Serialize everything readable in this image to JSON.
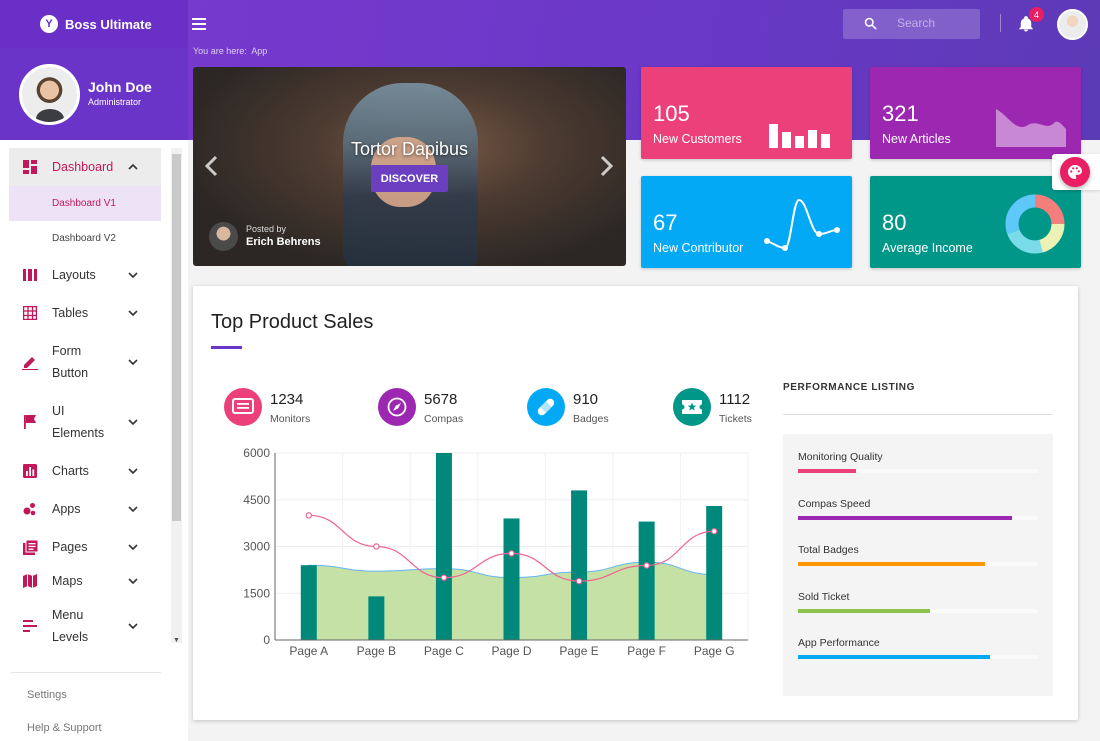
{
  "app": {
    "brand": "Boss Ultimate",
    "breadcrumb_label": "You are here:",
    "breadcrumb_page": "App"
  },
  "search": {
    "placeholder": "Search"
  },
  "notifications": {
    "count": "4"
  },
  "profile": {
    "name": "John Doe",
    "role": "Administrator"
  },
  "nav": {
    "dashboard": "Dashboard",
    "dashboard_v1": "Dashboard V1",
    "dashboard_v2": "Dashboard V2",
    "layouts": "Layouts",
    "tables": "Tables",
    "form_line1": "Form",
    "form_line2": "Button",
    "ui_line1": "UI",
    "ui_line2": "Elements",
    "charts": "Charts",
    "apps": "Apps",
    "pages": "Pages",
    "maps": "Maps",
    "menu_line1": "Menu",
    "menu_line2": "Levels",
    "settings": "Settings",
    "help": "Help & Support"
  },
  "hero": {
    "title": "Tortor Dapibus",
    "button": "DISCOVER",
    "posted_label": "Posted by",
    "author": "Erich Behrens"
  },
  "cards": {
    "customers": {
      "value": "105",
      "label": "New Customers",
      "color": "#ec407a"
    },
    "articles": {
      "value": "321",
      "label": "New Articles",
      "color": "#9c27b0"
    },
    "contributor": {
      "value": "67",
      "label": "New Contributor",
      "color": "#03a9f4"
    },
    "income": {
      "value": "80",
      "label": "Average Income",
      "color": "#009688"
    }
  },
  "panel": {
    "title": "Top Product Sales"
  },
  "stats": {
    "monitors": {
      "value": "1234",
      "label": "Monitors",
      "color": "#ec407a"
    },
    "compas": {
      "value": "5678",
      "label": "Compas",
      "color": "#9c27b0"
    },
    "badges": {
      "value": "910",
      "label": "Badges",
      "color": "#03a9f4"
    },
    "tickets": {
      "value": "1112",
      "label": "Tickets",
      "color": "#009688"
    }
  },
  "chart_data": {
    "type": "bar",
    "categories": [
      "Page A",
      "Page B",
      "Page C",
      "Page D",
      "Page E",
      "Page F",
      "Page G"
    ],
    "series": [
      {
        "name": "bars",
        "type": "bar",
        "values": [
          2400,
          1400,
          6000,
          3900,
          4800,
          3800,
          4300
        ],
        "color": "#00897b"
      },
      {
        "name": "area",
        "type": "area",
        "values": [
          2400,
          2210,
          2290,
          2000,
          2181,
          2500,
          2100
        ],
        "color": "#c5e1a5"
      },
      {
        "name": "line",
        "type": "line",
        "values": [
          4000,
          3000,
          2000,
          2780,
          1890,
          2390,
          3490
        ],
        "color": "#f06292"
      }
    ],
    "yticks": [
      0,
      1500,
      3000,
      4500,
      6000
    ],
    "ylim": [
      0,
      6000
    ]
  },
  "performance": {
    "title": "PERFORMANCE LISTING",
    "items": [
      {
        "label": "Monitoring Quality",
        "value": 24,
        "color": "#ec407a"
      },
      {
        "label": "Compas Speed",
        "value": 89,
        "color": "#9c27b0"
      },
      {
        "label": "Total Badges",
        "value": 78,
        "color": "#ff9800"
      },
      {
        "label": "Sold Ticket",
        "value": 55,
        "color": "#8bc34a"
      },
      {
        "label": "App Performance",
        "value": 80,
        "color": "#03a9f4"
      }
    ]
  }
}
